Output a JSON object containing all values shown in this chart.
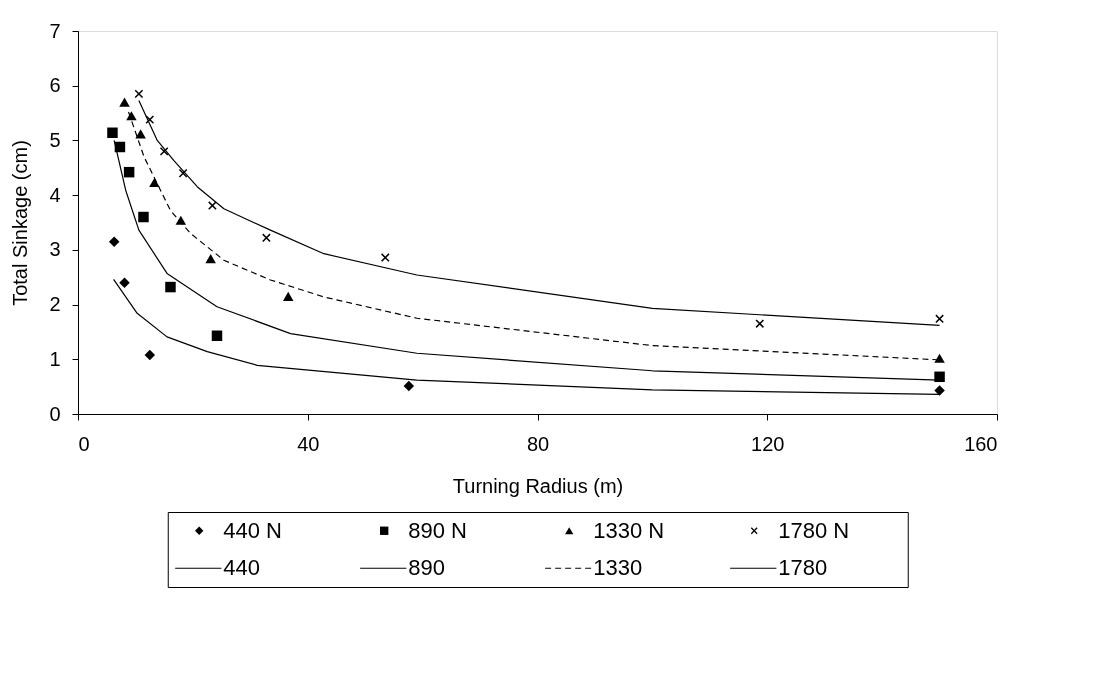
{
  "chart_data": {
    "type": "scatter",
    "xlabel": "Turning Radius (m)",
    "ylabel": "Total Sinkage (cm)",
    "xlim": [
      0,
      160
    ],
    "xticks": [
      0,
      40,
      80,
      120,
      160
    ],
    "ylim": [
      0,
      7
    ],
    "yticks": [
      0,
      1,
      2,
      3,
      4,
      5,
      6,
      7
    ],
    "grid": false,
    "legend": "bottom",
    "series": [
      {
        "name": "440 N",
        "marker": "diamond",
        "color": "#000000",
        "x": [
          6.3,
          8.1,
          12.5,
          57.6,
          150
        ],
        "values": [
          3.15,
          2.4,
          1.08,
          0.51,
          0.43
        ]
      },
      {
        "name": "890 N",
        "marker": "square",
        "color": "#000000",
        "x": [
          6.0,
          7.3,
          8.9,
          11.4,
          16.1,
          24.2,
          150
        ],
        "values": [
          5.14,
          4.88,
          4.42,
          3.6,
          2.32,
          1.43,
          0.68
        ]
      },
      {
        "name": "1330 N",
        "marker": "triangle",
        "color": "#000000",
        "x": [
          8.1,
          9.3,
          10.9,
          13.3,
          17.9,
          23.1,
          36.6,
          150
        ],
        "values": [
          5.7,
          5.45,
          5.12,
          4.23,
          3.54,
          2.84,
          2.15,
          1.02
        ]
      },
      {
        "name": "1780 N",
        "marker": "cross",
        "color": "#000000",
        "x": [
          10.6,
          12.5,
          15.0,
          18.3,
          23.4,
          32.8,
          53.5,
          118.7,
          150
        ],
        "values": [
          5.85,
          5.38,
          4.8,
          4.4,
          3.81,
          3.22,
          2.86,
          1.65,
          1.74
        ]
      },
      {
        "name": "440",
        "type": "line",
        "line_style": "solid",
        "color": "#000000",
        "x": [
          6.2,
          10.3,
          15.5,
          22.5,
          31.2,
          59,
          100,
          150
        ],
        "values": [
          2.46,
          1.84,
          1.41,
          1.14,
          0.89,
          0.62,
          0.44,
          0.36
        ]
      },
      {
        "name": "890",
        "type": "line",
        "line_style": "solid",
        "color": "#000000",
        "x": [
          6.3,
          8.3,
          10.6,
          15.5,
          24.2,
          37,
          59,
          100,
          150
        ],
        "values": [
          5.0,
          4.09,
          3.36,
          2.57,
          1.96,
          1.47,
          1.11,
          0.79,
          0.62
        ]
      },
      {
        "name": "1330",
        "type": "line",
        "line_style": "dashed",
        "color": "#000000",
        "x": [
          8.8,
          11.5,
          16.1,
          19.6,
          25.4,
          33.5,
          42.8,
          59,
          100,
          150
        ],
        "values": [
          5.52,
          4.7,
          3.72,
          3.3,
          2.81,
          2.45,
          2.14,
          1.75,
          1.25,
          0.99
        ]
      },
      {
        "name": "1780",
        "type": "line",
        "line_style": "solid",
        "color": "#000000",
        "x": [
          10.6,
          13.8,
          16.7,
          20.8,
          25.4,
          33.5,
          42.8,
          59,
          100,
          150
        ],
        "values": [
          5.73,
          5.0,
          4.63,
          4.15,
          3.75,
          3.36,
          2.93,
          2.54,
          1.93,
          1.62
        ]
      }
    ]
  }
}
